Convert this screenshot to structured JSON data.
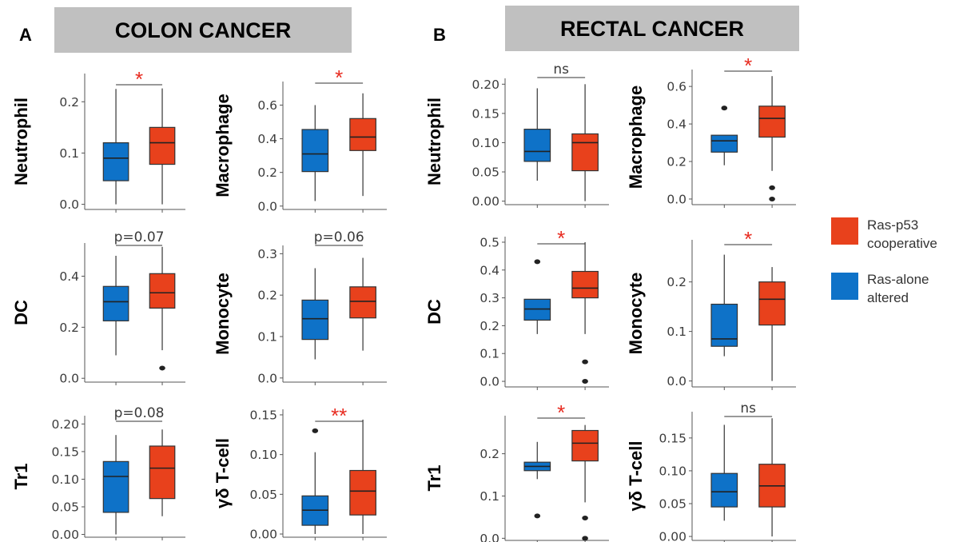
{
  "panels": [
    {
      "letter": "A",
      "title": "COLON CANCER"
    },
    {
      "letter": "B",
      "title": "RECTAL CANCER"
    }
  ],
  "legend": [
    {
      "label": [
        "Ras-p53",
        "cooperative"
      ],
      "color": "#e8411c"
    },
    {
      "label": [
        "Ras-alone",
        "altered"
      ],
      "color": "#0e72c8"
    }
  ],
  "colors": {
    "ras_alone": "#0e72c8",
    "ras_p53": "#e8411c",
    "significance": "#e82c21",
    "banner": "#c0c0c0"
  },
  "chart_data": [
    {
      "type": "box",
      "panel": "A",
      "ylabel": "Neutrophil",
      "yticks": [
        "0.0",
        "0.1",
        "0.2"
      ],
      "ylim": [
        -0.01,
        0.255
      ],
      "significance": "*",
      "series": [
        {
          "name": "Ras-alone altered",
          "min": 0.0,
          "q1": 0.046,
          "median": 0.09,
          "q3": 0.12,
          "max": 0.225,
          "outliers": []
        },
        {
          "name": "Ras-p53 cooperative",
          "min": 0.0,
          "q1": 0.078,
          "median": 0.12,
          "q3": 0.15,
          "max": 0.226,
          "outliers": []
        }
      ]
    },
    {
      "type": "box",
      "panel": "A",
      "ylabel": "Macrophage",
      "yticks": [
        "0.0",
        "0.2",
        "0.4",
        "0.6"
      ],
      "ylim": [
        -0.02,
        0.74
      ],
      "significance": "*",
      "series": [
        {
          "name": "Ras-alone altered",
          "min": 0.03,
          "q1": 0.205,
          "median": 0.31,
          "q3": 0.455,
          "max": 0.6,
          "outliers": []
        },
        {
          "name": "Ras-p53 cooperative",
          "min": 0.06,
          "q1": 0.33,
          "median": 0.41,
          "q3": 0.52,
          "max": 0.67,
          "outliers": []
        }
      ]
    },
    {
      "type": "box",
      "panel": "A",
      "ylabel": "DC",
      "yticks": [
        "0.0",
        "0.2",
        "0.4"
      ],
      "ylim": [
        -0.015,
        0.53
      ],
      "significance": "p=0.07",
      "series": [
        {
          "name": "Ras-alone altered",
          "min": 0.09,
          "q1": 0.225,
          "median": 0.3,
          "q3": 0.36,
          "max": 0.48,
          "outliers": []
        },
        {
          "name": "Ras-p53 cooperative",
          "min": 0.11,
          "q1": 0.275,
          "median": 0.335,
          "q3": 0.41,
          "max": 0.515,
          "outliers": [
            0.04
          ]
        }
      ]
    },
    {
      "type": "box",
      "panel": "A",
      "ylabel": "Monocyte",
      "yticks": [
        "0.0",
        "0.1",
        "0.2",
        "0.3"
      ],
      "ylim": [
        -0.01,
        0.32
      ],
      "significance": "p=0.06",
      "series": [
        {
          "name": "Ras-alone altered",
          "min": 0.045,
          "q1": 0.093,
          "median": 0.143,
          "q3": 0.188,
          "max": 0.265,
          "outliers": []
        },
        {
          "name": "Ras-p53 cooperative",
          "min": 0.066,
          "q1": 0.145,
          "median": 0.185,
          "q3": 0.22,
          "max": 0.29,
          "outliers": []
        }
      ]
    },
    {
      "type": "box",
      "panel": "A",
      "ylabel": "Tr1",
      "yticks": [
        "0.00",
        "0.05",
        "0.10",
        "0.15",
        "0.20"
      ],
      "ylim": [
        -0.005,
        0.215
      ],
      "significance": "p=0.08",
      "series": [
        {
          "name": "Ras-alone altered",
          "min": 0.0,
          "q1": 0.04,
          "median": 0.105,
          "q3": 0.132,
          "max": 0.18,
          "outliers": []
        },
        {
          "name": "Ras-p53 cooperative",
          "min": 0.033,
          "q1": 0.065,
          "median": 0.12,
          "q3": 0.16,
          "max": 0.19,
          "outliers": []
        }
      ]
    },
    {
      "type": "box",
      "panel": "A",
      "ylabel": "γδ T-cell",
      "yticks": [
        "0.00",
        "0.05",
        "0.10",
        "0.15"
      ],
      "ylim": [
        -0.004,
        0.157
      ],
      "significance": "**",
      "series": [
        {
          "name": "Ras-alone altered",
          "min": 0.0,
          "q1": 0.011,
          "median": 0.03,
          "q3": 0.048,
          "max": 0.103,
          "outliers": [
            0.13
          ]
        },
        {
          "name": "Ras-p53 cooperative",
          "min": 0.0,
          "q1": 0.024,
          "median": 0.054,
          "q3": 0.08,
          "max": 0.144,
          "outliers": []
        }
      ]
    },
    {
      "type": "box",
      "panel": "B",
      "ylabel": "Neutrophil",
      "yticks": [
        "0.00",
        "0.05",
        "0.10",
        "0.15",
        "0.20"
      ],
      "ylim": [
        -0.006,
        0.21
      ],
      "significance": "ns",
      "series": [
        {
          "name": "Ras-alone altered",
          "min": 0.035,
          "q1": 0.068,
          "median": 0.085,
          "q3": 0.123,
          "max": 0.193,
          "outliers": []
        },
        {
          "name": "Ras-p53 cooperative",
          "min": 0.0,
          "q1": 0.052,
          "median": 0.1,
          "q3": 0.115,
          "max": 0.2,
          "outliers": []
        }
      ]
    },
    {
      "type": "box",
      "panel": "B",
      "ylabel": "Macrophage",
      "yticks": [
        "0.0",
        "0.2",
        "0.4",
        "0.6"
      ],
      "ylim": [
        -0.03,
        0.69
      ],
      "significance": "*",
      "series": [
        {
          "name": "Ras-alone altered",
          "min": 0.18,
          "q1": 0.25,
          "median": 0.31,
          "q3": 0.34,
          "max": 0.34,
          "outliers": [
            0.485
          ]
        },
        {
          "name": "Ras-p53 cooperative",
          "min": 0.15,
          "q1": 0.33,
          "median": 0.43,
          "q3": 0.495,
          "max": 0.655,
          "outliers": [
            0.06,
            0.0
          ]
        }
      ]
    },
    {
      "type": "box",
      "panel": "B",
      "ylabel": "DC",
      "yticks": [
        "0.0",
        "0.1",
        "0.2",
        "0.3",
        "0.4",
        "0.5"
      ],
      "ylim": [
        -0.02,
        0.52
      ],
      "significance": "*",
      "series": [
        {
          "name": "Ras-alone altered",
          "min": 0.17,
          "q1": 0.22,
          "median": 0.26,
          "q3": 0.295,
          "max": 0.295,
          "outliers": [
            0.43
          ]
        },
        {
          "name": "Ras-p53 cooperative",
          "min": 0.17,
          "q1": 0.3,
          "median": 0.335,
          "q3": 0.395,
          "max": 0.5,
          "outliers": [
            0.07,
            0.0
          ]
        }
      ]
    },
    {
      "type": "box",
      "panel": "B",
      "ylabel": "Monocyte",
      "yticks": [
        "0.0",
        "0.1",
        "0.2"
      ],
      "ylim": [
        -0.012,
        0.285
      ],
      "significance": "*",
      "series": [
        {
          "name": "Ras-alone altered",
          "min": 0.05,
          "q1": 0.07,
          "median": 0.085,
          "q3": 0.155,
          "max": 0.255,
          "outliers": []
        },
        {
          "name": "Ras-p53 cooperative",
          "min": 0.0,
          "q1": 0.113,
          "median": 0.165,
          "q3": 0.2,
          "max": 0.23,
          "outliers": []
        }
      ]
    },
    {
      "type": "box",
      "panel": "B",
      "ylabel": "Tr1",
      "yticks": [
        "0.0",
        "0.1",
        "0.2"
      ],
      "ylim": [
        -0.005,
        0.29
      ],
      "significance": "*",
      "series": [
        {
          "name": "Ras-alone altered",
          "min": 0.14,
          "q1": 0.16,
          "median": 0.17,
          "q3": 0.18,
          "max": 0.228,
          "outliers": [
            0.053
          ]
        },
        {
          "name": "Ras-p53 cooperative",
          "min": 0.085,
          "q1": 0.183,
          "median": 0.225,
          "q3": 0.255,
          "max": 0.268,
          "outliers": [
            0.048,
            0.0
          ]
        }
      ]
    },
    {
      "type": "box",
      "panel": "B",
      "ylabel": "γδ T-cell",
      "yticks": [
        "0.00",
        "0.05",
        "0.10",
        "0.15"
      ],
      "ylim": [
        -0.006,
        0.19
      ],
      "significance": "ns",
      "series": [
        {
          "name": "Ras-alone altered",
          "min": 0.024,
          "q1": 0.045,
          "median": 0.068,
          "q3": 0.096,
          "max": 0.17,
          "outliers": []
        },
        {
          "name": "Ras-p53 cooperative",
          "min": 0.0,
          "q1": 0.045,
          "median": 0.077,
          "q3": 0.11,
          "max": 0.18,
          "outliers": []
        }
      ]
    }
  ]
}
